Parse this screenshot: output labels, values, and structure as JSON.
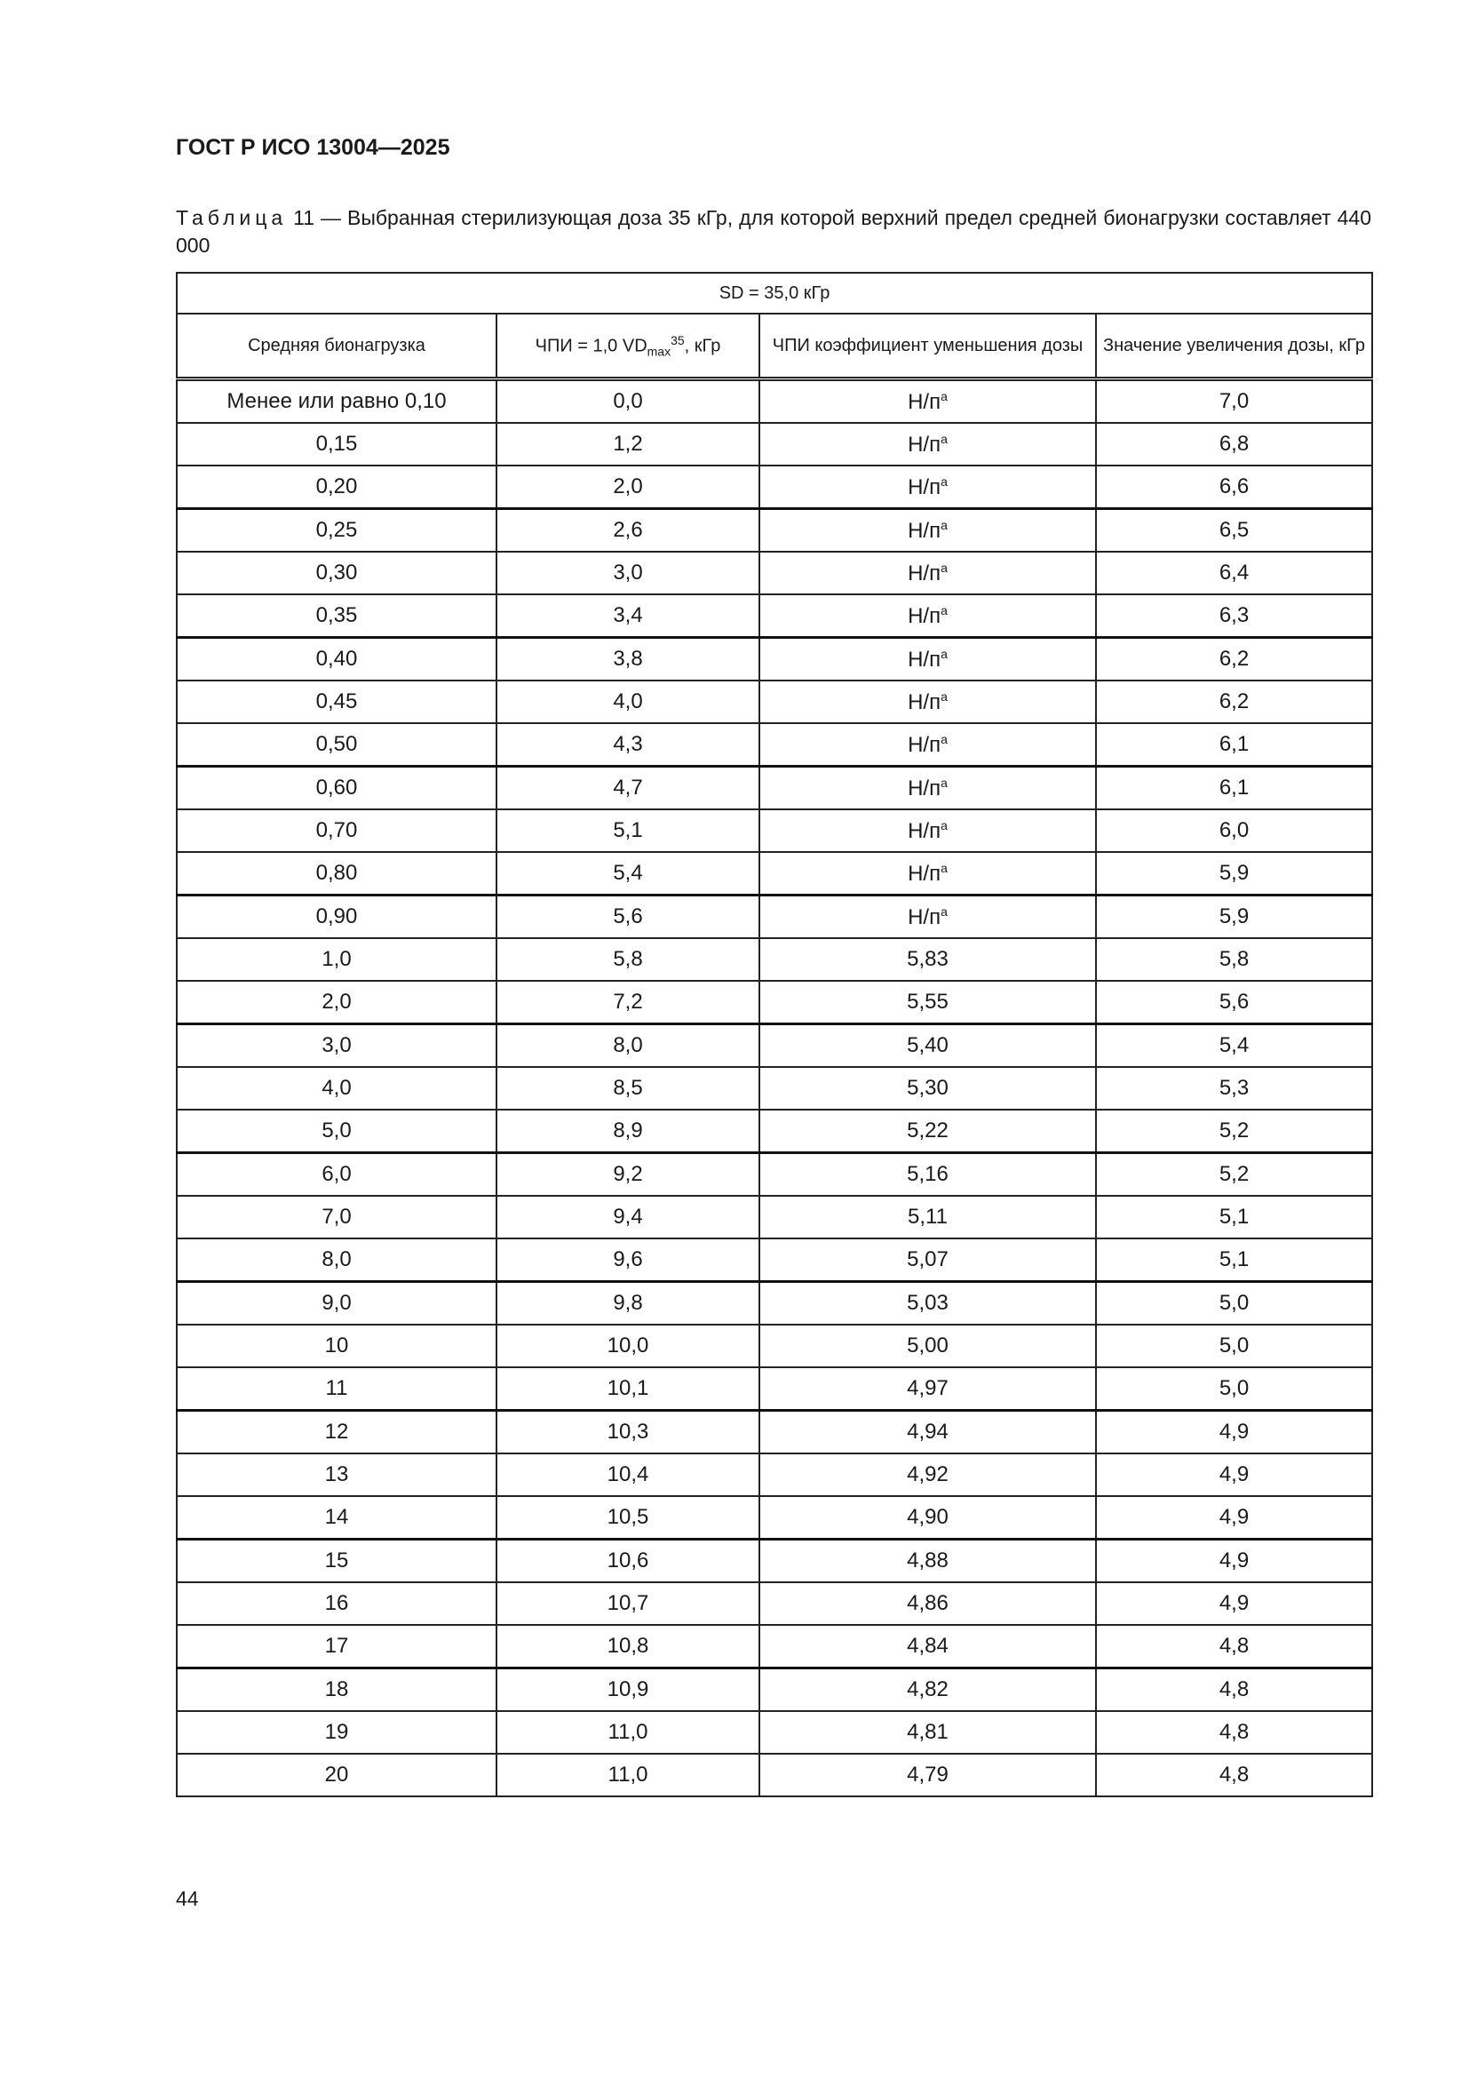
{
  "header": {
    "doc_id": "ГОСТ Р ИСО 13004—2025"
  },
  "caption": {
    "label": "Таблица",
    "text": " 11 — Выбранная стерилизующая доза 35 кГр, для которой верхний предел средней бионагрузки составляет 440 000"
  },
  "table": {
    "span_header": "SD = 35,0 кГр",
    "columns": {
      "c1": "Средняя бионагрузка",
      "c2_pre": "ЧПИ = 1,0 VD",
      "c2_sub": "max",
      "c2_sup": "35",
      "c2_post": ", кГр",
      "c3": "ЧПИ коэффициент уменьшения дозы",
      "c4": "Значение увеличения дозы, кГр"
    },
    "rows": [
      [
        "Менее или равно 0,10",
        "0,0",
        "Н/п",
        "7,0"
      ],
      [
        "0,15",
        "1,2",
        "Н/п",
        "6,8"
      ],
      [
        "0,20",
        "2,0",
        "Н/п",
        "6,6"
      ],
      [
        "0,25",
        "2,6",
        "Н/п",
        "6,5"
      ],
      [
        "0,30",
        "3,0",
        "Н/п",
        "6,4"
      ],
      [
        "0,35",
        "3,4",
        "Н/п",
        "6,3"
      ],
      [
        "0,40",
        "3,8",
        "Н/п",
        "6,2"
      ],
      [
        "0,45",
        "4,0",
        "Н/п",
        "6,2"
      ],
      [
        "0,50",
        "4,3",
        "Н/п",
        "6,1"
      ],
      [
        "0,60",
        "4,7",
        "Н/п",
        "6,1"
      ],
      [
        "0,70",
        "5,1",
        "Н/п",
        "6,0"
      ],
      [
        "0,80",
        "5,4",
        "Н/п",
        "5,9"
      ],
      [
        "0,90",
        "5,6",
        "Н/п",
        "5,9"
      ],
      [
        "1,0",
        "5,8",
        "5,83",
        "5,8"
      ],
      [
        "2,0",
        "7,2",
        "5,55",
        "5,6"
      ],
      [
        "3,0",
        "8,0",
        "5,40",
        "5,4"
      ],
      [
        "4,0",
        "8,5",
        "5,30",
        "5,3"
      ],
      [
        "5,0",
        "8,9",
        "5,22",
        "5,2"
      ],
      [
        "6,0",
        "9,2",
        "5,16",
        "5,2"
      ],
      [
        "7,0",
        "9,4",
        "5,11",
        "5,1"
      ],
      [
        "8,0",
        "9,6",
        "5,07",
        "5,1"
      ],
      [
        "9,0",
        "9,8",
        "5,03",
        "5,0"
      ],
      [
        "10",
        "10,0",
        "5,00",
        "5,0"
      ],
      [
        "11",
        "10,1",
        "4,97",
        "5,0"
      ],
      [
        "12",
        "10,3",
        "4,94",
        "4,9"
      ],
      [
        "13",
        "10,4",
        "4,92",
        "4,9"
      ],
      [
        "14",
        "10,5",
        "4,90",
        "4,9"
      ],
      [
        "15",
        "10,6",
        "4,88",
        "4,9"
      ],
      [
        "16",
        "10,7",
        "4,86",
        "4,9"
      ],
      [
        "17",
        "10,8",
        "4,84",
        "4,8"
      ],
      [
        "18",
        "10,9",
        "4,82",
        "4,8"
      ],
      [
        "19",
        "11,0",
        "4,81",
        "4,8"
      ],
      [
        "20",
        "11,0",
        "4,79",
        "4,8"
      ]
    ],
    "footnote_mark": "a"
  },
  "page_number": "44"
}
